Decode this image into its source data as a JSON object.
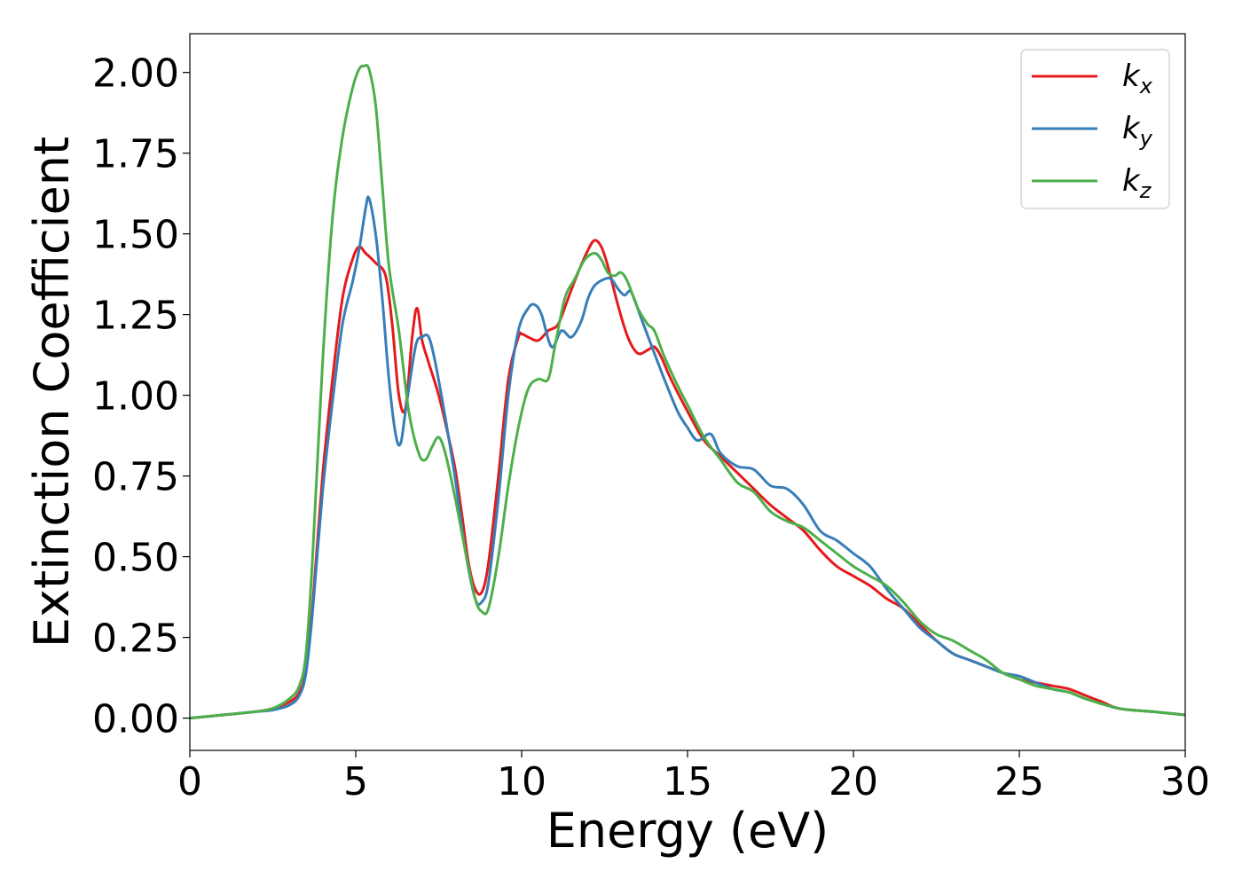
{
  "chart_data": {
    "type": "line",
    "xlabel": "Energy (eV)",
    "ylabel": "Extinction Coefficient",
    "xlim": [
      0,
      30
    ],
    "ylim": [
      -0.1,
      2.12
    ],
    "xticks": [
      0,
      5,
      10,
      15,
      20,
      25,
      30
    ],
    "xtick_labels": [
      "0",
      "5",
      "10",
      "15",
      "20",
      "25",
      "30"
    ],
    "yticks": [
      0,
      0.25,
      0.5,
      0.75,
      1.0,
      1.25,
      1.5,
      1.75,
      2.0
    ],
    "ytick_labels": [
      "0.00",
      "0.25",
      "0.50",
      "0.75",
      "1.00",
      "1.25",
      "1.50",
      "1.75",
      "2.00"
    ],
    "grid": false,
    "legend_position": "top-right",
    "series": [
      {
        "name": "k_x",
        "legend_base": "k",
        "legend_sub": "x",
        "color": "#e41a1c",
        "x": [
          0,
          1,
          2,
          2.5,
          3,
          3.3,
          3.5,
          3.7,
          4.0,
          4.3,
          4.6,
          4.9,
          5.1,
          5.3,
          5.6,
          5.9,
          6.1,
          6.3,
          6.5,
          6.7,
          6.85,
          7.0,
          7.2,
          7.5,
          7.8,
          8.0,
          8.2,
          8.4,
          8.6,
          8.8,
          9.0,
          9.3,
          9.6,
          9.9,
          10.0,
          10.2,
          10.5,
          10.8,
          11.1,
          11.4,
          11.7,
          12.0,
          12.2,
          12.4,
          12.6,
          12.9,
          13.2,
          13.5,
          13.8,
          14.0,
          14.2,
          14.5,
          15.0,
          15.5,
          16.0,
          16.5,
          17.0,
          17.5,
          18.0,
          18.5,
          19.0,
          19.5,
          20.0,
          20.5,
          21.0,
          21.5,
          22.0,
          22.5,
          23.0,
          23.5,
          24.0,
          24.5,
          25.0,
          25.5,
          26.0,
          26.5,
          27.0,
          27.5,
          28.0,
          29.0,
          30.0
        ],
        "values": [
          0.0,
          0.01,
          0.02,
          0.03,
          0.05,
          0.08,
          0.15,
          0.35,
          0.75,
          1.05,
          1.3,
          1.42,
          1.46,
          1.44,
          1.41,
          1.37,
          1.22,
          1.0,
          0.96,
          1.18,
          1.27,
          1.17,
          1.1,
          1.0,
          0.87,
          0.77,
          0.63,
          0.48,
          0.4,
          0.39,
          0.48,
          0.75,
          1.05,
          1.18,
          1.19,
          1.18,
          1.17,
          1.2,
          1.22,
          1.3,
          1.38,
          1.45,
          1.48,
          1.46,
          1.4,
          1.28,
          1.18,
          1.13,
          1.14,
          1.15,
          1.12,
          1.05,
          0.95,
          0.86,
          0.81,
          0.76,
          0.71,
          0.66,
          0.62,
          0.58,
          0.52,
          0.47,
          0.44,
          0.41,
          0.37,
          0.34,
          0.29,
          0.24,
          0.2,
          0.18,
          0.16,
          0.14,
          0.12,
          0.11,
          0.1,
          0.09,
          0.07,
          0.05,
          0.03,
          0.02,
          0.01
        ]
      },
      {
        "name": "k_y",
        "legend_base": "k",
        "legend_sub": "y",
        "color": "#377eb8",
        "x": [
          0,
          1,
          2,
          2.5,
          3,
          3.3,
          3.5,
          3.7,
          4.0,
          4.3,
          4.6,
          4.9,
          5.1,
          5.3,
          5.4,
          5.6,
          5.8,
          6.0,
          6.2,
          6.35,
          6.5,
          6.8,
          7.0,
          7.2,
          7.4,
          7.7,
          8.0,
          8.3,
          8.6,
          8.8,
          9.0,
          9.3,
          9.6,
          9.9,
          10.2,
          10.4,
          10.6,
          10.9,
          11.2,
          11.5,
          11.8,
          12.0,
          12.2,
          12.5,
          12.7,
          12.9,
          13.1,
          13.3,
          13.6,
          14.0,
          14.3,
          14.7,
          15.0,
          15.3,
          15.7,
          16.0,
          16.5,
          17.0,
          17.5,
          18.0,
          18.5,
          19.0,
          19.5,
          20.0,
          20.5,
          21.0,
          21.5,
          22.0,
          22.5,
          23.0,
          23.5,
          24.0,
          24.5,
          25.0,
          25.5,
          26.0,
          26.5,
          27.0,
          28.0,
          29.0,
          30.0
        ],
        "values": [
          0.0,
          0.01,
          0.02,
          0.025,
          0.04,
          0.07,
          0.14,
          0.33,
          0.7,
          0.98,
          1.22,
          1.35,
          1.45,
          1.58,
          1.61,
          1.5,
          1.3,
          1.05,
          0.88,
          0.85,
          0.95,
          1.15,
          1.18,
          1.18,
          1.1,
          0.93,
          0.74,
          0.52,
          0.37,
          0.36,
          0.42,
          0.68,
          1.0,
          1.2,
          1.27,
          1.28,
          1.25,
          1.15,
          1.2,
          1.18,
          1.23,
          1.3,
          1.34,
          1.36,
          1.36,
          1.33,
          1.31,
          1.32,
          1.24,
          1.13,
          1.05,
          0.95,
          0.9,
          0.86,
          0.88,
          0.82,
          0.78,
          0.77,
          0.72,
          0.71,
          0.66,
          0.58,
          0.55,
          0.51,
          0.47,
          0.4,
          0.34,
          0.28,
          0.24,
          0.2,
          0.18,
          0.16,
          0.14,
          0.13,
          0.11,
          0.09,
          0.08,
          0.06,
          0.03,
          0.02,
          0.01
        ]
      },
      {
        "name": "k_z",
        "legend_base": "k",
        "legend_sub": "z",
        "color": "#4daf4a",
        "x": [
          0,
          1,
          2,
          2.5,
          3,
          3.3,
          3.5,
          3.7,
          4.0,
          4.3,
          4.6,
          4.9,
          5.1,
          5.25,
          5.4,
          5.6,
          5.8,
          6.0,
          6.3,
          6.6,
          6.9,
          7.1,
          7.3,
          7.5,
          7.7,
          8.0,
          8.3,
          8.6,
          8.8,
          9.0,
          9.3,
          9.6,
          9.9,
          10.2,
          10.5,
          10.8,
          11.0,
          11.3,
          11.6,
          11.9,
          12.2,
          12.4,
          12.6,
          12.8,
          13.0,
          13.2,
          13.5,
          13.8,
          14.0,
          14.3,
          14.7,
          15.0,
          15.5,
          16.0,
          16.5,
          17.0,
          17.5,
          18.0,
          18.5,
          19.0,
          19.5,
          20.0,
          20.5,
          21.0,
          21.5,
          22.0,
          22.5,
          23.0,
          23.5,
          24.0,
          24.5,
          25.0,
          25.5,
          26.0,
          26.5,
          27.0,
          28.0,
          29.0,
          30.0
        ],
        "values": [
          0.0,
          0.01,
          0.02,
          0.03,
          0.06,
          0.1,
          0.2,
          0.5,
          1.1,
          1.55,
          1.8,
          1.95,
          2.01,
          2.02,
          2.01,
          1.9,
          1.65,
          1.4,
          1.2,
          0.95,
          0.82,
          0.8,
          0.84,
          0.87,
          0.82,
          0.68,
          0.52,
          0.37,
          0.33,
          0.34,
          0.5,
          0.72,
          0.9,
          1.02,
          1.05,
          1.05,
          1.15,
          1.3,
          1.36,
          1.42,
          1.44,
          1.42,
          1.38,
          1.37,
          1.38,
          1.35,
          1.27,
          1.22,
          1.2,
          1.12,
          1.03,
          0.97,
          0.87,
          0.8,
          0.73,
          0.7,
          0.64,
          0.61,
          0.59,
          0.55,
          0.51,
          0.47,
          0.44,
          0.41,
          0.36,
          0.3,
          0.26,
          0.24,
          0.21,
          0.18,
          0.14,
          0.12,
          0.1,
          0.09,
          0.08,
          0.06,
          0.03,
          0.02,
          0.01
        ]
      }
    ]
  }
}
